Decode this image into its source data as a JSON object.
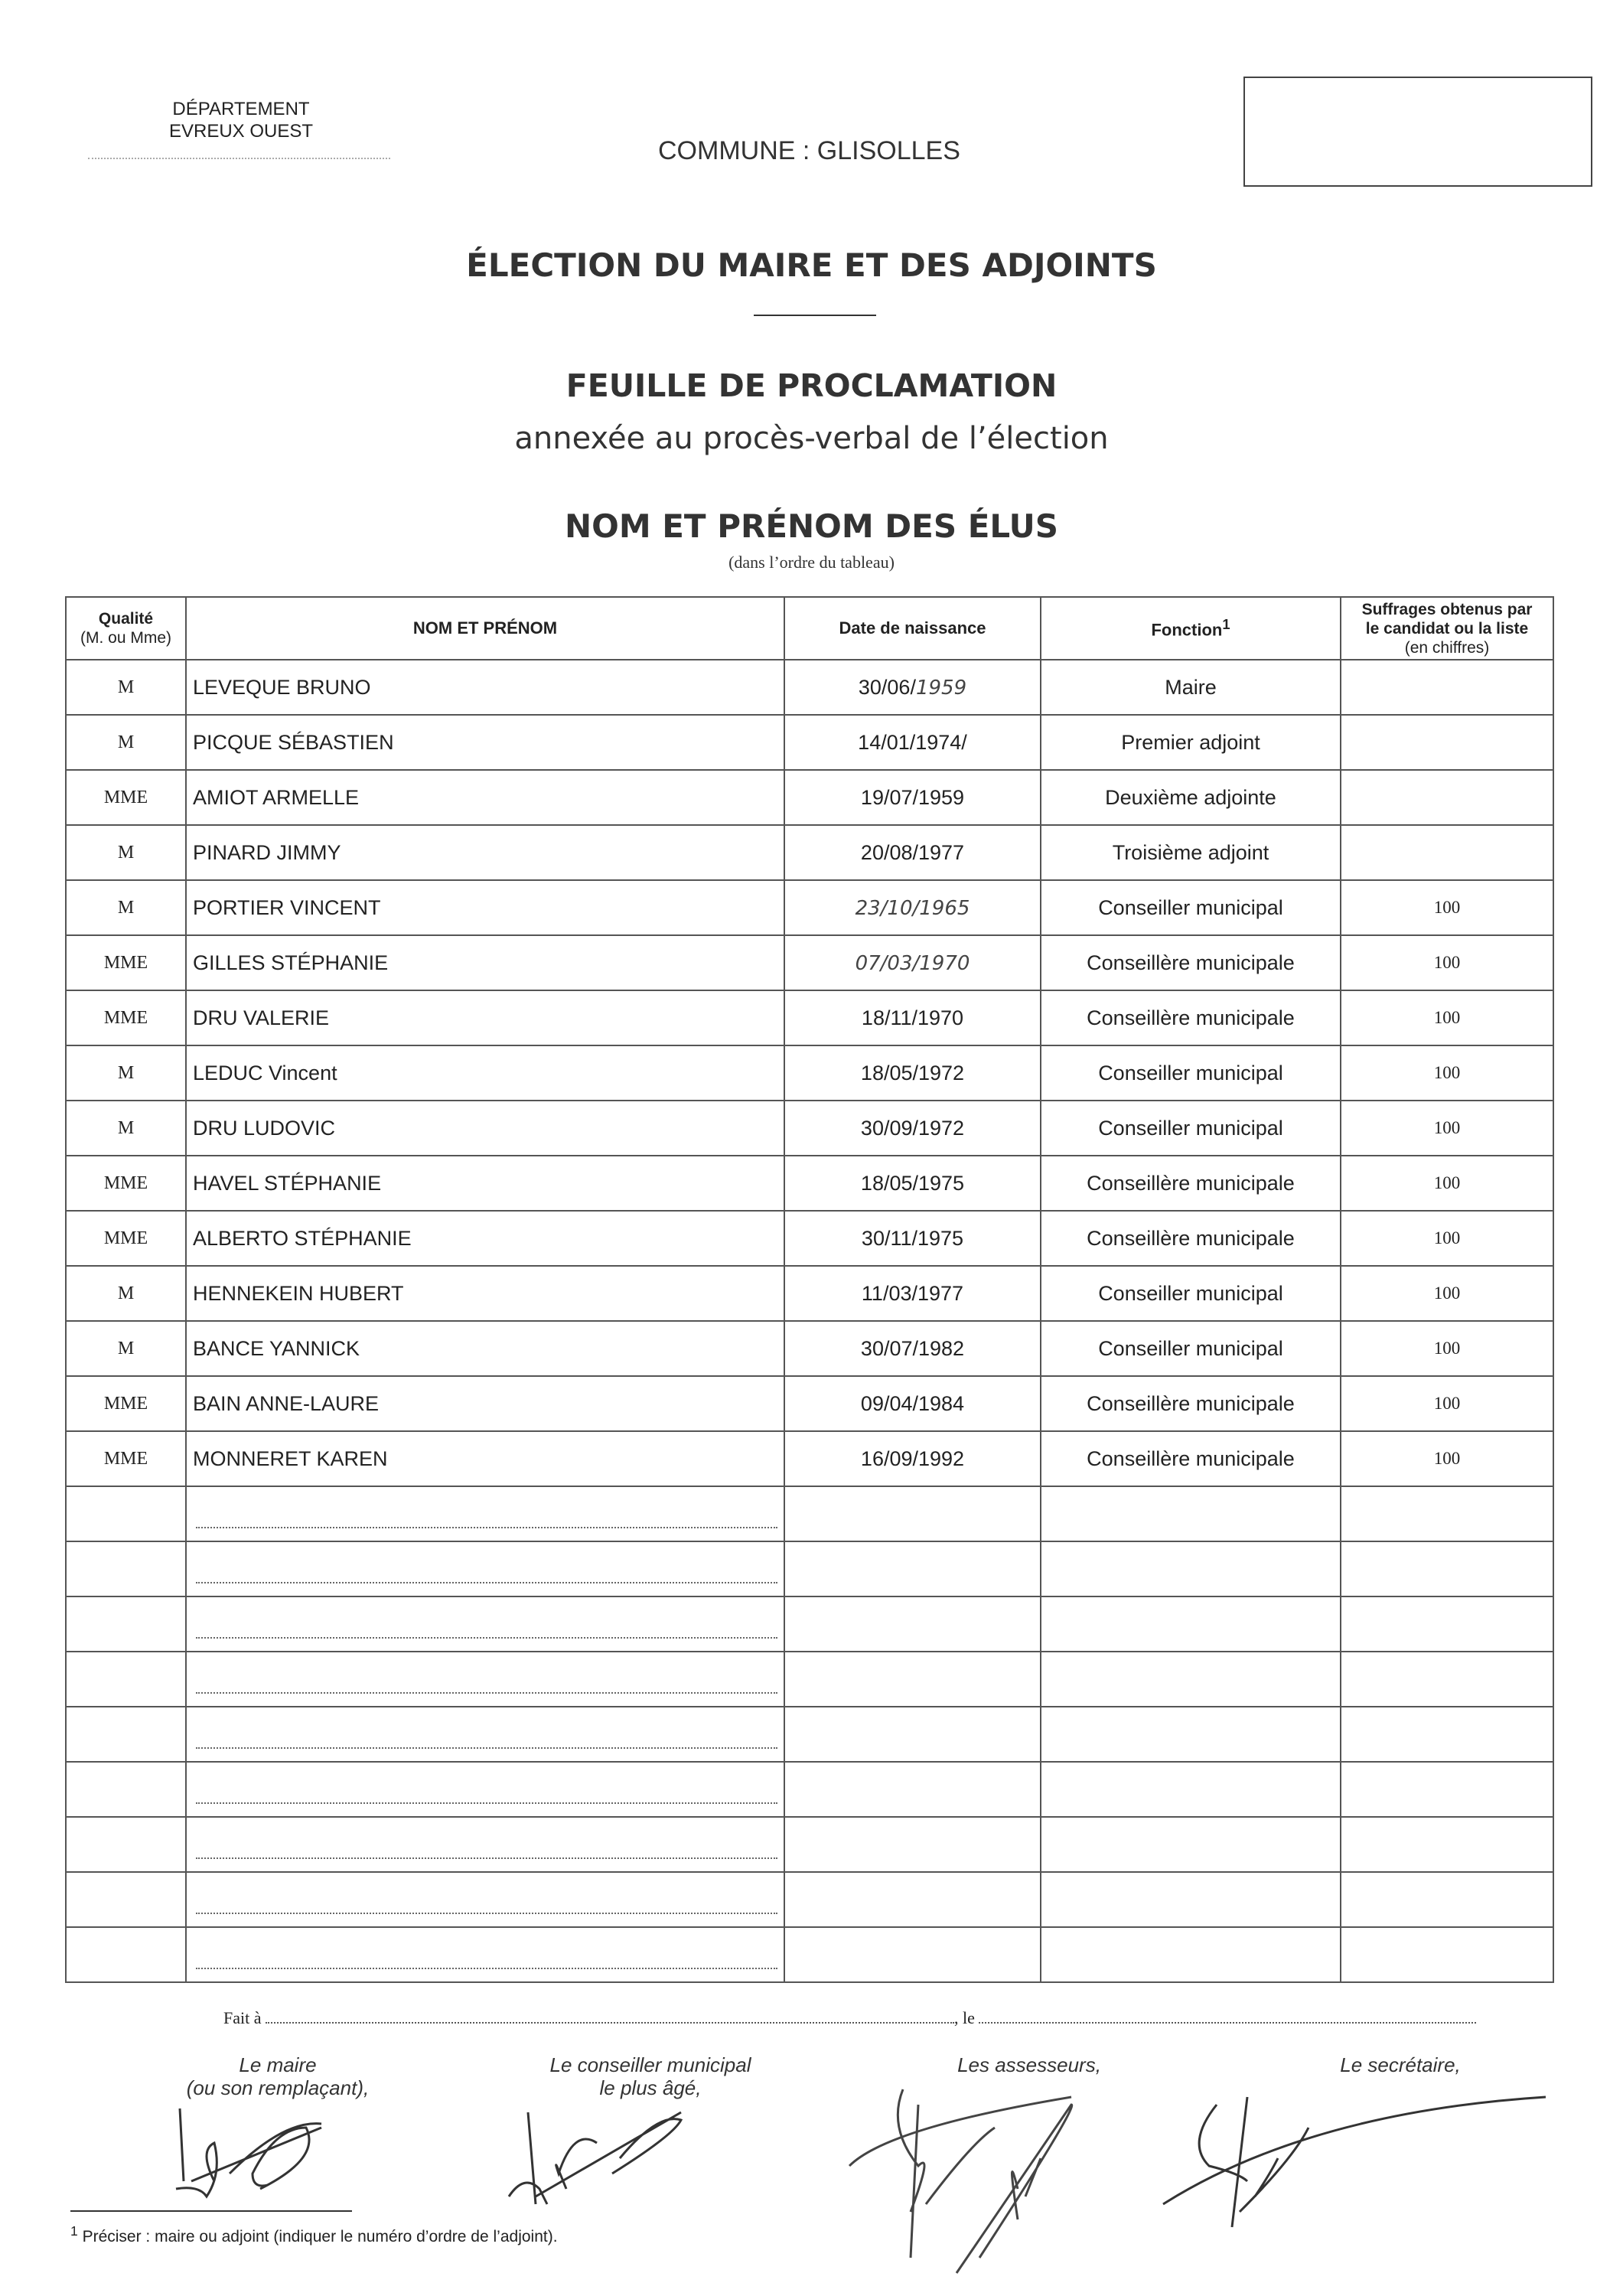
{
  "header": {
    "departement_label": "DÉPARTEMENT",
    "departement_value": "EVREUX OUEST",
    "commune": "COMMUNE : GLISOLLES"
  },
  "titles": {
    "main": "ÉLECTION DU MAIRE ET DES ADJOINTS",
    "sheet": "FEUILLE DE PROCLAMATION",
    "annex": "annexée au procès-verbal de l’élection",
    "section": "NOM ET PRÉNOM DES ÉLUS",
    "section_note": "(dans l’ordre du tableau)"
  },
  "table": {
    "headers": {
      "qualite": "Qualité",
      "qualite_sub": "(M. ou Mme)",
      "nom": "NOM ET PRÉNOM",
      "date": "Date de naissance",
      "fonction": "Fonction",
      "fonction_sup": "1",
      "suffrages_1": "Suffrages obtenus par",
      "suffrages_2": "le candidat ou la liste",
      "suffrages_3": "(en chiffres)"
    },
    "rows": [
      {
        "q": "M",
        "n": "LEVEQUE BRUNO",
        "d": "30/06/",
        "dh": "1959",
        "f": "Maire",
        "s": ""
      },
      {
        "q": "M",
        "n": "PICQUE SÉBASTIEN",
        "d": "14/01/1974/",
        "dh": "",
        "f": "Premier adjoint",
        "s": ""
      },
      {
        "q": "MME",
        "n": "AMIOT ARMELLE",
        "d": "19/07/1959",
        "dh": "",
        "f": "Deuxième adjointe",
        "s": ""
      },
      {
        "q": "M",
        "n": "PINARD JIMMY",
        "d": "20/08/1977",
        "dh": "",
        "f": "Troisième adjoint",
        "s": ""
      },
      {
        "q": "M",
        "n": "PORTIER VINCENT",
        "d": "",
        "dh": "23/10/1965",
        "f": "Conseiller municipal",
        "s": "100"
      },
      {
        "q": "MME",
        "n": "GILLES STÉPHANIE",
        "d": "",
        "dh": "07/03/1970",
        "f": "Conseillère municipale",
        "s": "100"
      },
      {
        "q": "MME",
        "n": "DRU VALERIE",
        "d": "18/11/1970",
        "dh": "",
        "f": "Conseillère municipale",
        "s": "100"
      },
      {
        "q": "M",
        "n": "LEDUC Vincent",
        "d": "18/05/1972",
        "dh": "",
        "f": "Conseiller municipal",
        "s": "100"
      },
      {
        "q": "M",
        "n": "DRU LUDOVIC",
        "d": "30/09/1972",
        "dh": "",
        "f": "Conseiller municipal",
        "s": "100"
      },
      {
        "q": "MME",
        "n": "HAVEL STÉPHANIE",
        "d": "18/05/1975",
        "dh": "",
        "f": "Conseillère municipale",
        "s": "100"
      },
      {
        "q": "MME",
        "n": "ALBERTO STÉPHANIE",
        "d": "30/11/1975",
        "dh": "",
        "f": "Conseillère municipale",
        "s": "100"
      },
      {
        "q": "M",
        "n": "HENNEKEIN HUBERT",
        "d": "11/03/1977",
        "dh": "",
        "f": "Conseiller municipal",
        "s": "100"
      },
      {
        "q": "M",
        "n": "BANCE YANNICK",
        "d": "30/07/1982",
        "dh": "",
        "f": "Conseiller municipal",
        "s": "100"
      },
      {
        "q": "MME",
        "n": "BAIN ANNE-LAURE",
        "d": "09/04/1984",
        "dh": "",
        "f": "Conseillère municipale",
        "s": "100"
      },
      {
        "q": "MME",
        "n": "MONNERET KAREN",
        "d": "16/09/1992",
        "dh": "",
        "f": "Conseillère municipale",
        "s": "100"
      }
    ],
    "empty_rows": 9
  },
  "footer": {
    "fait_a": "Fait à",
    "le": ", le",
    "signatories": [
      {
        "line1": "Le maire",
        "line2": "(ou son remplaçant),"
      },
      {
        "line1": "Le conseiller municipal",
        "line2": "le plus âgé,"
      },
      {
        "line1": "Les assesseurs,",
        "line2": ""
      },
      {
        "line1": "Le secrétaire,",
        "line2": ""
      }
    ],
    "footnote_mark": "1",
    "footnote": " Préciser : maire ou adjoint (indiquer le numéro d’ordre de l’adjoint)."
  }
}
